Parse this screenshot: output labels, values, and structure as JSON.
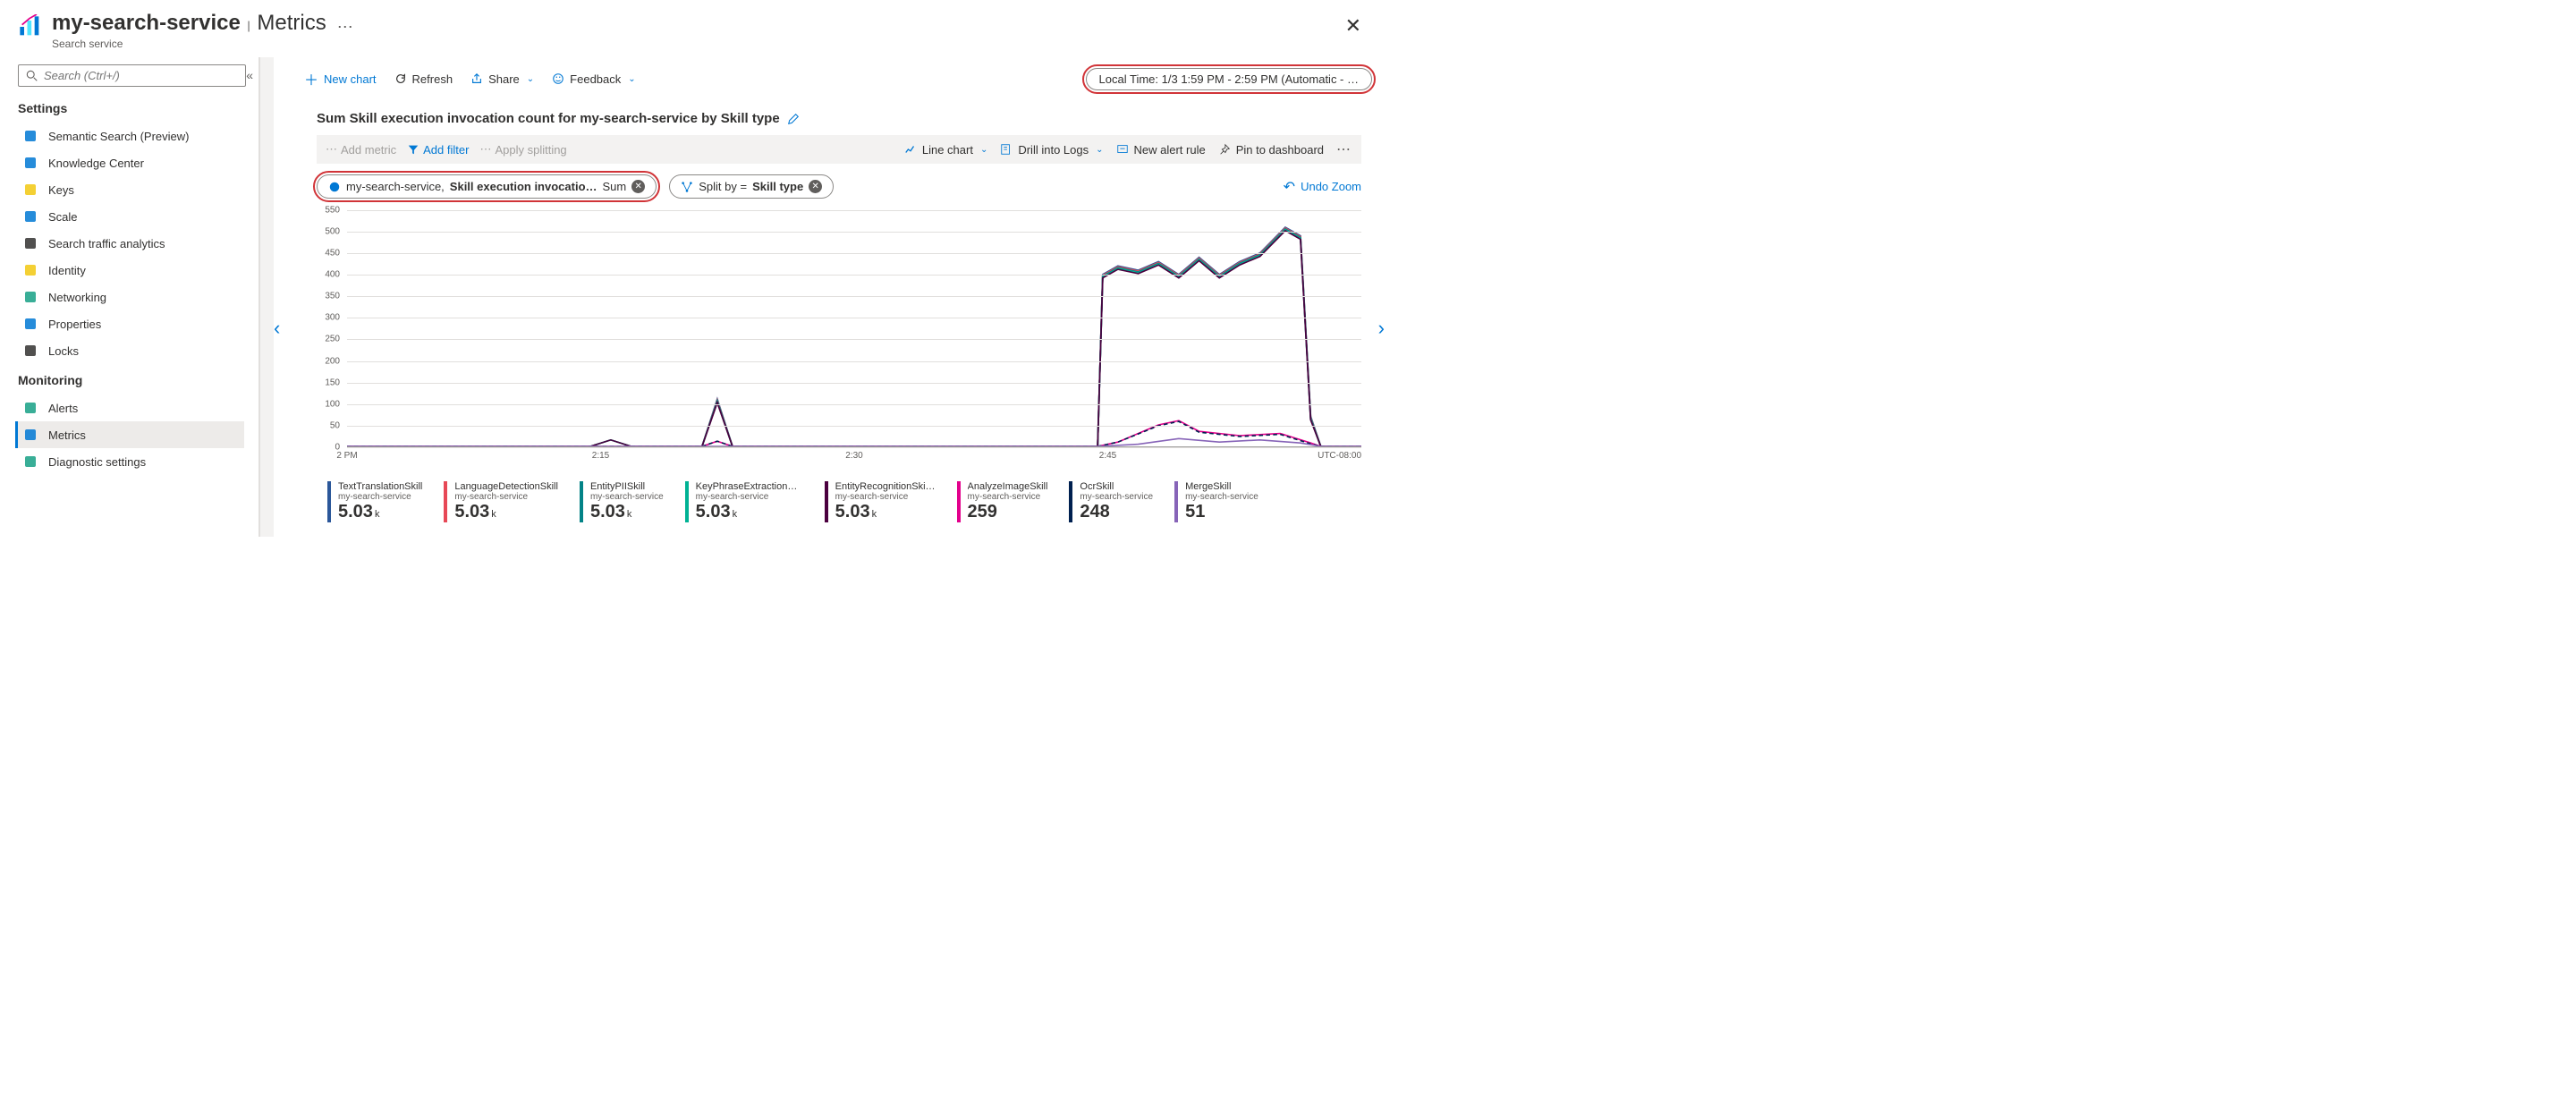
{
  "header": {
    "title": "my-search-service",
    "section": "Metrics",
    "subtitle": "Search service"
  },
  "search": {
    "placeholder": "Search (Ctrl+/)"
  },
  "sidebar": {
    "sections": [
      {
        "title": "Settings",
        "items": [
          {
            "label": "Semantic Search (Preview)",
            "icon": "search",
            "color": "#0078d4"
          },
          {
            "label": "Knowledge Center",
            "icon": "cloud",
            "color": "#0078d4"
          },
          {
            "label": "Keys",
            "icon": "key",
            "color": "#f2c811"
          },
          {
            "label": "Scale",
            "icon": "scale",
            "color": "#0078d4"
          },
          {
            "label": "Search traffic analytics",
            "icon": "analytics",
            "color": "#323130"
          },
          {
            "label": "Identity",
            "icon": "identity",
            "color": "#f2c811"
          },
          {
            "label": "Networking",
            "icon": "network",
            "color": "#16a085"
          },
          {
            "label": "Properties",
            "icon": "props",
            "color": "#0078d4"
          },
          {
            "label": "Locks",
            "icon": "lock",
            "color": "#323130"
          }
        ]
      },
      {
        "title": "Monitoring",
        "items": [
          {
            "label": "Alerts",
            "icon": "alerts",
            "color": "#16a085"
          },
          {
            "label": "Metrics",
            "icon": "metrics",
            "color": "#0078d4",
            "active": true
          },
          {
            "label": "Diagnostic settings",
            "icon": "diag",
            "color": "#16a085"
          }
        ]
      }
    ]
  },
  "toolbar": {
    "new_chart": "New chart",
    "refresh": "Refresh",
    "share": "Share",
    "feedback": "Feedback",
    "time_range": "Local Time: 1/3 1:59 PM - 2:59 PM (Automatic - …"
  },
  "chart": {
    "title": "Sum Skill execution invocation count for my-search-service by Skill type",
    "chipbar": {
      "add_metric": "Add metric",
      "add_filter": "Add filter",
      "apply_splitting": "Apply splitting",
      "line_chart": "Line chart",
      "drill_logs": "Drill into Logs",
      "new_alert": "New alert rule",
      "pin": "Pin to dashboard"
    },
    "pills": {
      "metric_resource": "my-search-service,",
      "metric_name": "Skill execution invocatio…",
      "metric_agg": "Sum",
      "split_prefix": "Split by =",
      "split_value": "Skill type"
    },
    "undo": "Undo Zoom",
    "utc_label": "UTC-08:00",
    "y": {
      "min": 0,
      "max": 560,
      "ticks": [
        0,
        50,
        100,
        150,
        200,
        250,
        300,
        350,
        400,
        450,
        500,
        550
      ]
    },
    "x": {
      "ticks": [
        {
          "pos": 0.0,
          "label": "2 PM"
        },
        {
          "pos": 0.25,
          "label": "2:15"
        },
        {
          "pos": 0.5,
          "label": "2:30"
        },
        {
          "pos": 0.75,
          "label": "2:45"
        }
      ]
    },
    "colors": {
      "grid": "#e1dfdd",
      "axis": "#a19f9d"
    },
    "series": [
      {
        "name": "TextTranslationSkill",
        "svc": "my-search-service",
        "value": "5.03",
        "unit": "k",
        "color": "#2b579a",
        "points": [
          [
            0,
            0
          ],
          [
            0.24,
            0
          ],
          [
            0.26,
            15
          ],
          [
            0.28,
            0
          ],
          [
            0.35,
            0
          ],
          [
            0.365,
            110
          ],
          [
            0.38,
            0
          ],
          [
            0.74,
            0
          ],
          [
            0.745,
            400
          ],
          [
            0.76,
            420
          ],
          [
            0.78,
            410
          ],
          [
            0.8,
            430
          ],
          [
            0.82,
            400
          ],
          [
            0.84,
            440
          ],
          [
            0.86,
            400
          ],
          [
            0.88,
            430
          ],
          [
            0.9,
            450
          ],
          [
            0.925,
            510
          ],
          [
            0.94,
            490
          ],
          [
            0.95,
            70
          ],
          [
            0.96,
            0
          ],
          [
            1,
            0
          ]
        ]
      },
      {
        "name": "LanguageDetectionSkill",
        "svc": "my-search-service",
        "value": "5.03",
        "unit": "k",
        "color": "#e74856",
        "points": [
          [
            0,
            0
          ],
          [
            0.24,
            0
          ],
          [
            0.26,
            15
          ],
          [
            0.28,
            0
          ],
          [
            0.35,
            0
          ],
          [
            0.365,
            108
          ],
          [
            0.38,
            0
          ],
          [
            0.74,
            0
          ],
          [
            0.745,
            398
          ],
          [
            0.76,
            418
          ],
          [
            0.78,
            408
          ],
          [
            0.8,
            428
          ],
          [
            0.82,
            398
          ],
          [
            0.84,
            438
          ],
          [
            0.86,
            398
          ],
          [
            0.88,
            428
          ],
          [
            0.9,
            448
          ],
          [
            0.925,
            508
          ],
          [
            0.94,
            488
          ],
          [
            0.95,
            68
          ],
          [
            0.96,
            0
          ],
          [
            1,
            0
          ]
        ]
      },
      {
        "name": "EntityPIISkill",
        "svc": "my-search-service",
        "value": "5.03",
        "unit": "k",
        "color": "#038387",
        "points": [
          [
            0,
            0
          ],
          [
            0.24,
            0
          ],
          [
            0.26,
            15
          ],
          [
            0.28,
            0
          ],
          [
            0.35,
            0
          ],
          [
            0.365,
            106
          ],
          [
            0.38,
            0
          ],
          [
            0.74,
            0
          ],
          [
            0.745,
            396
          ],
          [
            0.76,
            416
          ],
          [
            0.78,
            406
          ],
          [
            0.8,
            426
          ],
          [
            0.82,
            396
          ],
          [
            0.84,
            436
          ],
          [
            0.86,
            396
          ],
          [
            0.88,
            426
          ],
          [
            0.9,
            446
          ],
          [
            0.925,
            506
          ],
          [
            0.94,
            486
          ],
          [
            0.95,
            66
          ],
          [
            0.96,
            0
          ],
          [
            1,
            0
          ]
        ]
      },
      {
        "name": "KeyPhraseExtractionS…",
        "svc": "my-search-service",
        "value": "5.03",
        "unit": "k",
        "color": "#00b294",
        "points": [
          [
            0,
            0
          ],
          [
            0.24,
            0
          ],
          [
            0.26,
            15
          ],
          [
            0.28,
            0
          ],
          [
            0.35,
            0
          ],
          [
            0.365,
            104
          ],
          [
            0.38,
            0
          ],
          [
            0.74,
            0
          ],
          [
            0.745,
            394
          ],
          [
            0.76,
            414
          ],
          [
            0.78,
            404
          ],
          [
            0.8,
            424
          ],
          [
            0.82,
            394
          ],
          [
            0.84,
            434
          ],
          [
            0.86,
            394
          ],
          [
            0.88,
            424
          ],
          [
            0.9,
            444
          ],
          [
            0.925,
            504
          ],
          [
            0.94,
            484
          ],
          [
            0.95,
            64
          ],
          [
            0.96,
            0
          ],
          [
            1,
            0
          ]
        ]
      },
      {
        "name": "EntityRecognitionSki…",
        "svc": "my-search-service",
        "value": "5.03",
        "unit": "k",
        "color": "#4b003f",
        "points": [
          [
            0,
            0
          ],
          [
            0.24,
            0
          ],
          [
            0.26,
            15
          ],
          [
            0.28,
            0
          ],
          [
            0.35,
            0
          ],
          [
            0.365,
            102
          ],
          [
            0.38,
            0
          ],
          [
            0.74,
            0
          ],
          [
            0.745,
            392
          ],
          [
            0.76,
            412
          ],
          [
            0.78,
            402
          ],
          [
            0.8,
            422
          ],
          [
            0.82,
            392
          ],
          [
            0.84,
            432
          ],
          [
            0.86,
            392
          ],
          [
            0.88,
            422
          ],
          [
            0.9,
            442
          ],
          [
            0.925,
            502
          ],
          [
            0.94,
            482
          ],
          [
            0.95,
            62
          ],
          [
            0.96,
            0
          ],
          [
            1,
            0
          ]
        ]
      },
      {
        "name": "AnalyzeImageSkill",
        "svc": "my-search-service",
        "value": "259",
        "unit": "",
        "color": "#e3008c",
        "points": [
          [
            0,
            0
          ],
          [
            0.35,
            0
          ],
          [
            0.365,
            12
          ],
          [
            0.38,
            0
          ],
          [
            0.74,
            0
          ],
          [
            0.76,
            10
          ],
          [
            0.8,
            50
          ],
          [
            0.82,
            60
          ],
          [
            0.84,
            35
          ],
          [
            0.88,
            25
          ],
          [
            0.92,
            30
          ],
          [
            0.95,
            8
          ],
          [
            0.96,
            0
          ],
          [
            1,
            0
          ]
        ]
      },
      {
        "name": "OcrSkill",
        "svc": "my-search-service",
        "value": "248",
        "unit": "",
        "color": "#002050",
        "points": [
          [
            0,
            0
          ],
          [
            0.35,
            0
          ],
          [
            0.365,
            12
          ],
          [
            0.38,
            0
          ],
          [
            0.74,
            0
          ],
          [
            0.76,
            10
          ],
          [
            0.8,
            48
          ],
          [
            0.82,
            58
          ],
          [
            0.84,
            33
          ],
          [
            0.88,
            23
          ],
          [
            0.92,
            28
          ],
          [
            0.95,
            6
          ],
          [
            0.96,
            0
          ],
          [
            1,
            0
          ]
        ],
        "dash": "4,3"
      },
      {
        "name": "MergeSkill",
        "svc": "my-search-service",
        "value": "51",
        "unit": "",
        "color": "#8764b8",
        "points": [
          [
            0,
            0
          ],
          [
            0.74,
            0
          ],
          [
            0.78,
            5
          ],
          [
            0.82,
            18
          ],
          [
            0.86,
            10
          ],
          [
            0.9,
            15
          ],
          [
            0.94,
            8
          ],
          [
            0.96,
            0
          ],
          [
            1,
            0
          ]
        ]
      }
    ]
  }
}
